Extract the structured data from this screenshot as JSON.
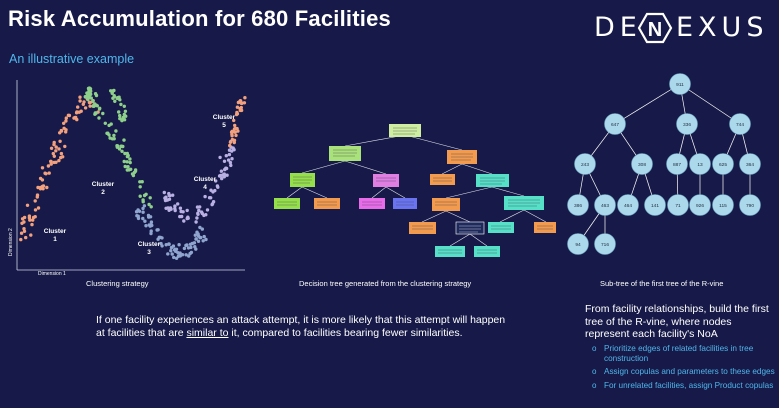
{
  "slide": {
    "title": "Risk Accumulation for 680 Facilities",
    "subtitle": "An illustrative example",
    "logo": "DENEXUS",
    "cluster_plot": {
      "caption": "Clustering strategy",
      "xlabel": "Dimension 1",
      "ylabel": "Dimension 2",
      "clusters": [
        {
          "label": "Cluster",
          "num": "1",
          "color": "#f2a07d"
        },
        {
          "label": "Cluster",
          "num": "2",
          "color": "#8ed08b"
        },
        {
          "label": "Cluster",
          "num": "3",
          "color": "#8fa5cf"
        },
        {
          "label": "Cluster",
          "num": "4",
          "color": "#b9b0e3"
        },
        {
          "label": "Cluster",
          "num": "5",
          "color": "#f2a07d"
        }
      ]
    },
    "decision_tree": {
      "caption": "Decision tree generated from the clustering strategy"
    },
    "vine": {
      "caption": "Sub-tree of the first tree of the R-vine",
      "nodes": [
        "911",
        "647",
        "336",
        "744",
        "243",
        "308",
        "887",
        "13",
        "625",
        "364",
        "386",
        "463",
        "464",
        "141",
        "71",
        "926",
        "115",
        "790",
        "94",
        "716"
      ]
    },
    "body_text_1": "If one facility experiences an attack attempt, it is more likely that this attempt will happen at facilities that are",
    "body_text_link": "similar to",
    "body_text_2": "it, compared to facilities bearing fewer similarities.",
    "right_text": "From facility relationships, build the first tree of the R-vine, where nodes represent each facility's NoA",
    "bullets": [
      "Prioritize edges of related facilities in tree construction",
      "Assign copulas and parameters to these edges",
      "For unrelated facilities, assign Product copulas"
    ]
  }
}
